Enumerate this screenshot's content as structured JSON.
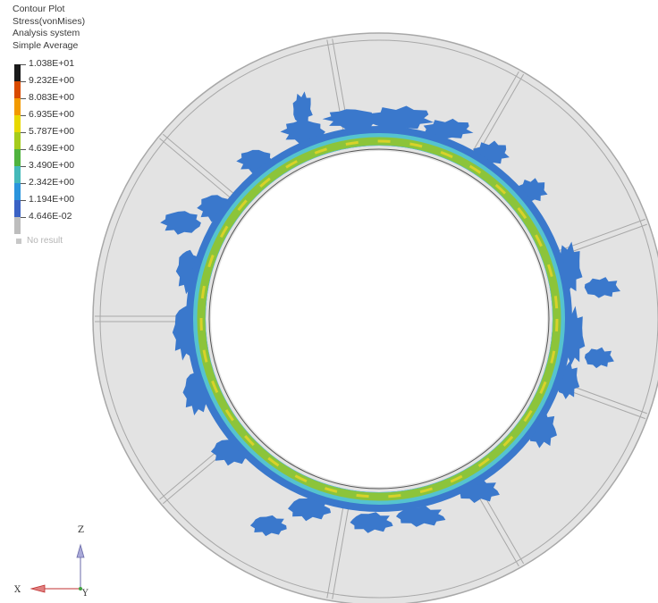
{
  "legend": {
    "title": "Contour Plot",
    "subtitle": "Stress(vonMises)",
    "system": "Analysis system",
    "averaging": "Simple Average",
    "levels": [
      {
        "label": "1.038E+01",
        "color": "#1a1a1a"
      },
      {
        "label": "9.232E+00",
        "color": "#d84a00"
      },
      {
        "label": "8.083E+00",
        "color": "#f29a00"
      },
      {
        "label": "6.935E+00",
        "color": "#e8d800"
      },
      {
        "label": "5.787E+00",
        "color": "#a5cc1c"
      },
      {
        "label": "4.639E+00",
        "color": "#4fb33e"
      },
      {
        "label": "3.490E+00",
        "color": "#44b9b9"
      },
      {
        "label": "2.342E+00",
        "color": "#2a94dc"
      },
      {
        "label": "1.194E+00",
        "color": "#3a62c4"
      },
      {
        "label": "4.646E-02",
        "color": "#bdbdbd"
      }
    ],
    "no_result": "No result"
  },
  "axes": {
    "z": "Z",
    "x": "X",
    "y": "Y"
  },
  "colors": {
    "ring_fill": "#e3e3e3",
    "ring_edge": "#a8a8a8",
    "contact_low": "#3a78cc",
    "band_cyan": "#55c3cf",
    "band_green": "#8cc43a",
    "band_yellow": "#d8d22a"
  }
}
